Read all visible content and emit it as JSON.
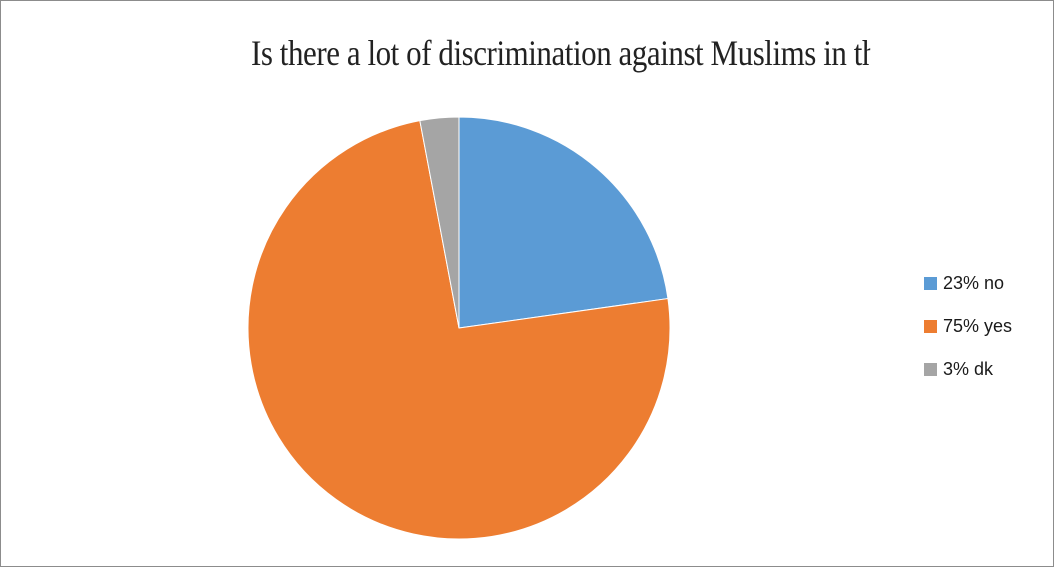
{
  "chart_data": {
    "type": "pie",
    "title": "Is there a lot of discrimination against Muslims in the U.S?",
    "slices": [
      {
        "label": "23% no",
        "value": 23,
        "color": "#5B9BD5"
      },
      {
        "label": "75% yes",
        "value": 75,
        "color": "#ED7D31"
      },
      {
        "label": "3% dk",
        "value": 3,
        "color": "#A5A5A5"
      }
    ],
    "legend_position": "right",
    "start_angle": "top",
    "direction": "clockwise"
  }
}
